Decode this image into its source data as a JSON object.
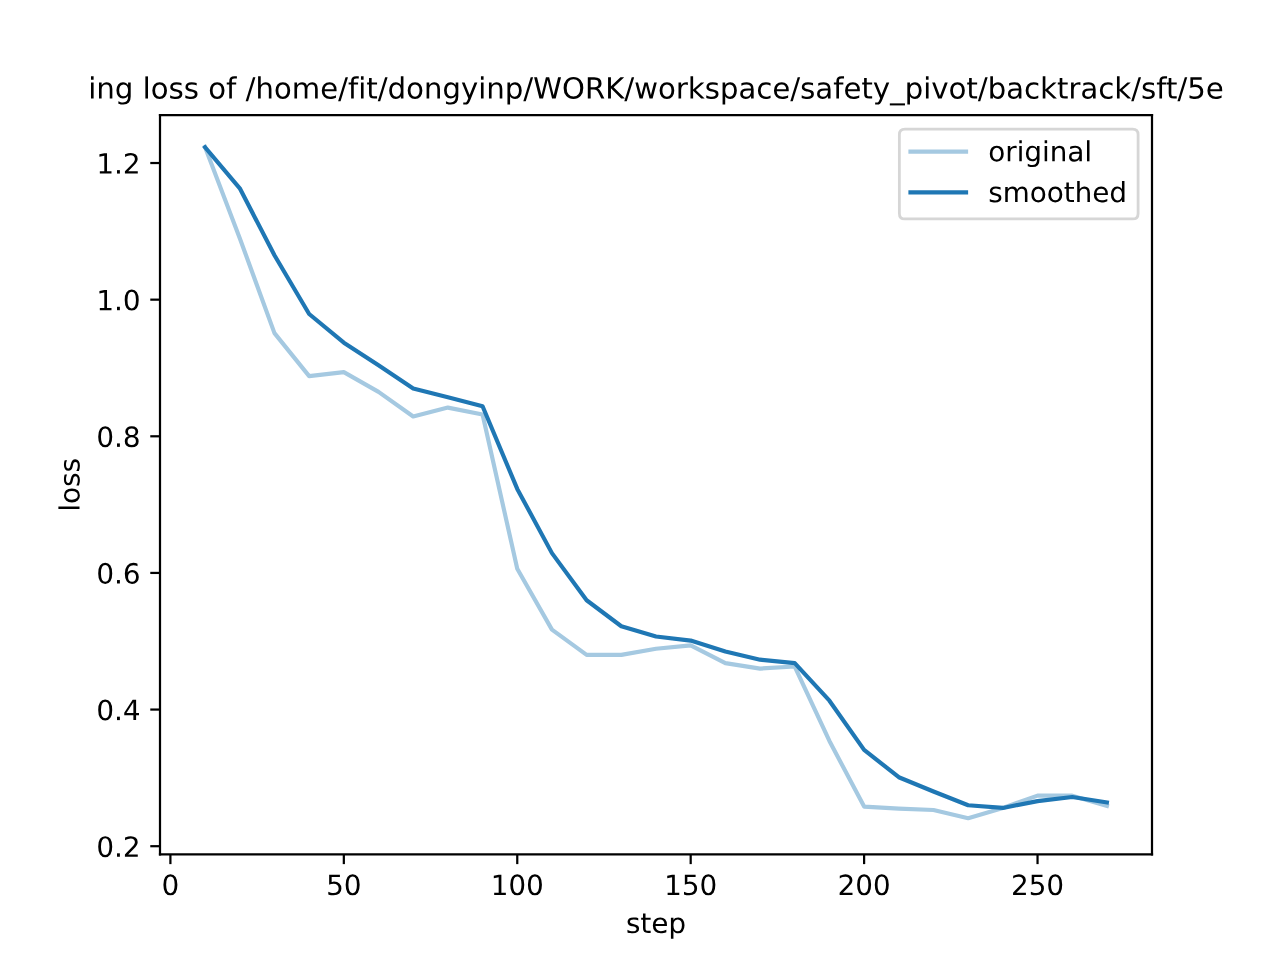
{
  "chart_data": {
    "type": "line",
    "title": "ing loss of /home/fit/dongyinp/WORK/workspace/safety_pivot/backtrack/sft/5e",
    "xlabel": "step",
    "ylabel": "loss",
    "x": [
      10,
      20,
      30,
      40,
      50,
      60,
      70,
      80,
      90,
      100,
      110,
      120,
      130,
      140,
      150,
      160,
      170,
      180,
      190,
      200,
      210,
      220,
      230,
      240,
      250,
      260,
      270
    ],
    "series": [
      {
        "name": "original",
        "color": "#a5c9e1",
        "values": [
          1.223,
          1.09,
          0.951,
          0.888,
          0.894,
          0.865,
          0.829,
          0.842,
          0.832,
          0.606,
          0.517,
          0.48,
          0.48,
          0.489,
          0.494,
          0.468,
          0.46,
          0.463,
          0.354,
          0.258,
          0.255,
          0.253,
          0.241,
          0.256,
          0.274,
          0.274,
          0.259
        ]
      },
      {
        "name": "smoothed",
        "color": "#1f77b4",
        "values": [
          1.223,
          1.163,
          1.065,
          0.979,
          0.937,
          0.904,
          0.87,
          0.857,
          0.844,
          0.723,
          0.629,
          0.56,
          0.522,
          0.507,
          0.501,
          0.485,
          0.473,
          0.468,
          0.413,
          0.341,
          0.301,
          0.28,
          0.26,
          0.256,
          0.266,
          0.272,
          0.264
        ]
      }
    ],
    "xlim": [
      -3,
      283
    ],
    "ylim": [
      0.188,
      1.27
    ],
    "xticks": [
      0,
      50,
      100,
      150,
      200,
      250
    ],
    "yticks": [
      0.2,
      0.4,
      0.6,
      0.8,
      {
        "value": 1,
        "label": "1.0"
      },
      1.2
    ],
    "legend": "top right",
    "grid": false,
    "marker": "none",
    "line_style": "solid"
  }
}
